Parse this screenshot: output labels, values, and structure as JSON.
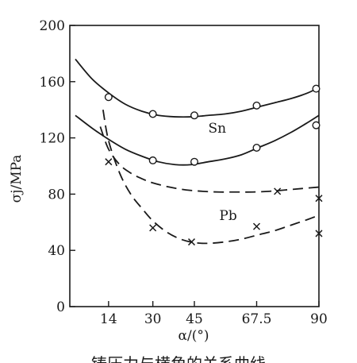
{
  "chart_data": {
    "type": "line",
    "xlabel": "α/(°)",
    "ylabel": "σj/MPa",
    "xlim": [
      0,
      90
    ],
    "ylim": [
      0,
      200
    ],
    "x_ticks": [
      "14",
      "30",
      "45",
      "67.5",
      "90"
    ],
    "y_ticks": [
      "0",
      "40",
      "80",
      "120",
      "160",
      "200"
    ],
    "grid": false,
    "labels": [
      {
        "text": "Sn",
        "x": 50,
        "y": 127
      },
      {
        "text": "Pb",
        "x": 54,
        "y": 65
      }
    ],
    "series": [
      {
        "group": "Sn",
        "line": "solid",
        "marker": "circle",
        "curve_x": [
          2,
          8,
          14,
          20,
          26,
          32,
          38,
          44,
          50,
          56,
          62,
          68,
          74,
          80,
          86,
          90
        ],
        "curve_y": [
          176,
          162,
          152,
          144,
          139,
          136,
          135,
          135,
          136,
          137,
          139,
          142,
          145,
          148,
          152,
          156
        ],
        "points": [
          [
            14,
            149
          ],
          [
            30,
            137
          ],
          [
            45,
            136
          ],
          [
            67.5,
            143
          ],
          [
            89,
            155
          ]
        ]
      },
      {
        "group": "Sn",
        "line": "solid",
        "marker": "circle",
        "curve_x": [
          2,
          8,
          14,
          20,
          26,
          32,
          38,
          44,
          50,
          56,
          62,
          68,
          74,
          80,
          86,
          90
        ],
        "curve_y": [
          136,
          127,
          119,
          112,
          107,
          103,
          101,
          101,
          103,
          105,
          108,
          113,
          118,
          124,
          131,
          136
        ],
        "points": [
          [
            30,
            104
          ],
          [
            45,
            103
          ],
          [
            67.5,
            113
          ],
          [
            89,
            129
          ]
        ]
      },
      {
        "group": "Pb",
        "line": "dashed",
        "marker": "x",
        "curve_x": [
          11,
          14,
          18,
          22,
          26,
          30,
          36,
          42,
          48,
          54,
          60,
          66,
          72,
          78,
          84,
          90
        ],
        "curve_y": [
          128,
          112,
          101,
          95,
          91,
          88,
          85,
          83,
          82,
          81.5,
          81.5,
          81.5,
          82,
          83,
          84,
          85
        ],
        "points": [
          [
            75,
            82
          ],
          [
            90,
            77
          ]
        ]
      },
      {
        "group": "Pb",
        "line": "dashed",
        "marker": "x",
        "curve_x": [
          12,
          14,
          18,
          22,
          26,
          30,
          35,
          40,
          45,
          50,
          56,
          62,
          68,
          74,
          80,
          86,
          90
        ],
        "curve_y": [
          140,
          118,
          95,
          80,
          70,
          61,
          53,
          48,
          45.5,
          45,
          46,
          48,
          51,
          54,
          58,
          62,
          65
        ],
        "points": [
          [
            14,
            103
          ],
          [
            30,
            56
          ],
          [
            44,
            46
          ],
          [
            67.5,
            57
          ],
          [
            90,
            52
          ]
        ]
      }
    ]
  },
  "caption": "铸压力与横角的关系曲线"
}
